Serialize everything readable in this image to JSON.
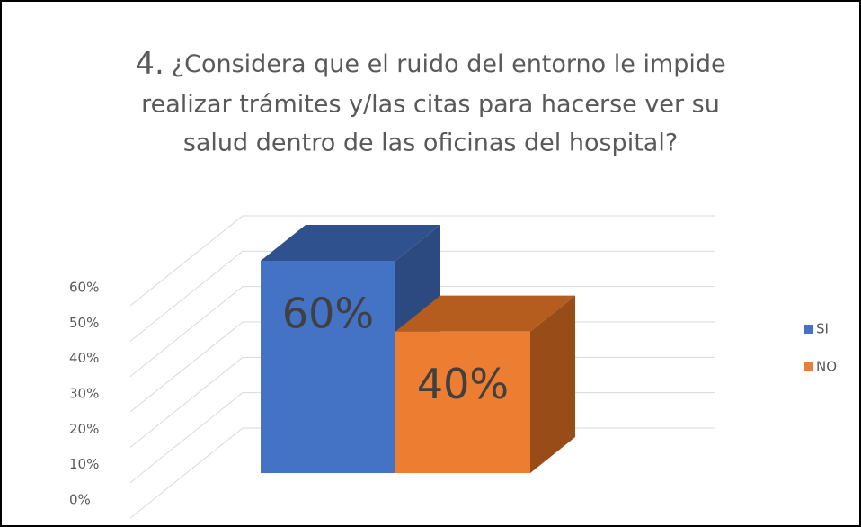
{
  "chart_data": {
    "type": "bar3d",
    "title": {
      "number": "4.",
      "lines": [
        "¿Considera que el ruido del entorno le impide",
        "realizar trámites y/las citas para hacerse ver su",
        "salud dentro de las oficinas del hospital?"
      ]
    },
    "categories": [
      null
    ],
    "series": [
      {
        "name": "SI",
        "color": "#4472c4",
        "top_color": "#2f528f",
        "side_color": "#2c4a80",
        "values": [
          60
        ],
        "value_labels": [
          "60%"
        ]
      },
      {
        "name": "NO",
        "color": "#ed7d31",
        "top_color": "#b55d1f",
        "side_color": "#984d18",
        "values": [
          40
        ],
        "value_labels": [
          "40%"
        ]
      }
    ],
    "ylim": [
      0,
      60
    ],
    "yticks": [
      {
        "value": 0,
        "label": "0%"
      },
      {
        "value": 10,
        "label": "10%"
      },
      {
        "value": 20,
        "label": "20%"
      },
      {
        "value": 30,
        "label": "30%"
      },
      {
        "value": 40,
        "label": "40%"
      },
      {
        "value": 50,
        "label": "50%"
      },
      {
        "value": 60,
        "label": "60%"
      }
    ],
    "grid": true,
    "legend": "right"
  }
}
